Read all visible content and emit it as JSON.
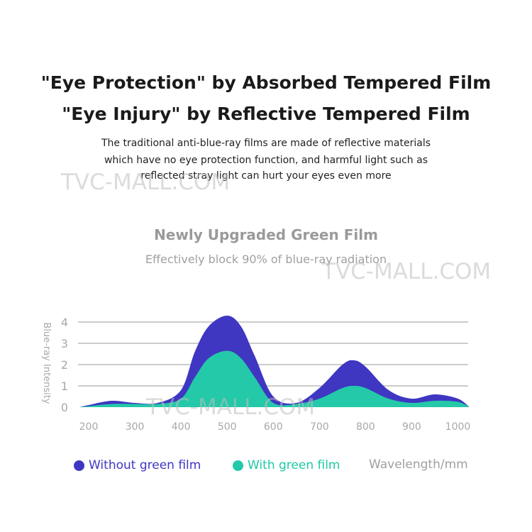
{
  "heading": {
    "line1": "\"Eye Protection\" by Absorbed Tempered Film",
    "line2": "\"Eye Injury\" by Reflective Tempered Film"
  },
  "description": {
    "line1": "The traditional anti-blue-ray films are made of reflective materials",
    "line2": "which have no eye protection function, and harmful light such as",
    "line3": "reflected stray light can hurt your eyes even more"
  },
  "watermark": "TVC-MALL.COM",
  "colors": {
    "without": "#3f36c2",
    "with": "#23c9a8",
    "grid": "#9a9a9a",
    "tick": "#a8a8a8"
  },
  "chart_data": {
    "type": "area",
    "title": "Newly Upgraded Green Film",
    "subtitle": "Effectively block 90% of blue-ray radiation",
    "xlabel": "Wavelength/mm",
    "ylabel": "Blue-ray Intensity",
    "xlim": [
      180,
      1030
    ],
    "ylim": [
      0,
      4.3
    ],
    "x_ticks": [
      200,
      300,
      400,
      500,
      600,
      700,
      800,
      900,
      1000
    ],
    "y_ticks": [
      0,
      1,
      2,
      3,
      4
    ],
    "grid": true,
    "legend_position": "bottom-left",
    "x": [
      180,
      200,
      250,
      300,
      350,
      400,
      430,
      460,
      500,
      530,
      560,
      600,
      650,
      700,
      750,
      775,
      800,
      850,
      900,
      950,
      1000,
      1025
    ],
    "series": [
      {
        "name": "Without green film",
        "color": "#3f36c2",
        "values": [
          0.0,
          0.1,
          0.3,
          0.2,
          0.2,
          0.8,
          2.6,
          3.8,
          4.3,
          3.8,
          2.4,
          0.5,
          0.2,
          0.9,
          2.0,
          2.2,
          1.9,
          0.8,
          0.4,
          0.6,
          0.4,
          0.0
        ]
      },
      {
        "name": "With green film",
        "color": "#23c9a8",
        "values": [
          0.0,
          0.05,
          0.15,
          0.15,
          0.15,
          0.4,
          1.4,
          2.3,
          2.65,
          2.3,
          1.4,
          0.2,
          0.15,
          0.4,
          0.9,
          1.0,
          0.9,
          0.4,
          0.2,
          0.3,
          0.25,
          0.0
        ]
      }
    ]
  }
}
